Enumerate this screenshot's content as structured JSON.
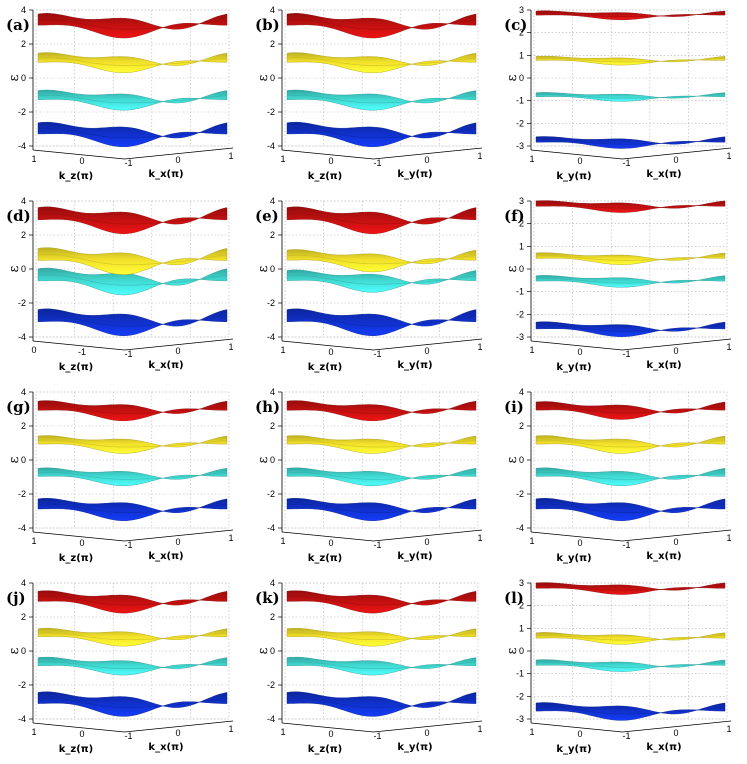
{
  "figure": {
    "ylabel": "ε",
    "ticklabel_x_units": "(π)"
  },
  "chart_data": [
    {
      "panel": "(a)",
      "type": "surface3d",
      "ylabel": "ε",
      "ylim": [
        -4,
        4
      ],
      "yticks": [
        "4",
        "2",
        "0",
        "-2",
        "-4"
      ],
      "xticks": [
        "1",
        "0",
        "-1",
        "0",
        "1"
      ],
      "axis1": "k_z(π)",
      "axis2": "k_x(π)",
      "bands": [
        {
          "center": 3.2,
          "amp": 0.55,
          "color": "#c01010"
        },
        {
          "center": 1.0,
          "amp": 0.45,
          "color": "#f2e02a"
        },
        {
          "center": -1.2,
          "amp": 0.45,
          "color": "#40d8d0"
        },
        {
          "center": -3.2,
          "amp": 0.55,
          "color": "#1030c8"
        }
      ]
    },
    {
      "panel": "(b)",
      "type": "surface3d",
      "ylabel": "ε",
      "ylim": [
        -4,
        4
      ],
      "yticks": [
        "4",
        "2",
        "0",
        "-2",
        "-4"
      ],
      "xticks": [
        "1",
        "0",
        "-1",
        "0",
        "1"
      ],
      "axis1": "k_z(π)",
      "axis2": "k_y(π)",
      "bands": [
        {
          "center": 3.2,
          "amp": 0.55,
          "color": "#c01010"
        },
        {
          "center": 1.0,
          "amp": 0.45,
          "color": "#f2e02a"
        },
        {
          "center": -1.2,
          "amp": 0.45,
          "color": "#40d8d0"
        },
        {
          "center": -3.2,
          "amp": 0.55,
          "color": "#1030c8"
        }
      ]
    },
    {
      "panel": "(c)",
      "type": "surface3d",
      "ylabel": "ε",
      "ylim": [
        -3,
        3
      ],
      "yticks": [
        "3",
        "2",
        "1",
        "0",
        "-1",
        "-2",
        "-3"
      ],
      "xticks": [
        "1",
        "0",
        "-1",
        "0",
        "1"
      ],
      "axis1": "k_y(π)",
      "axis2": "k_x(π)",
      "bands": [
        {
          "center": 2.8,
          "amp": 0.15,
          "color": "#c01010"
        },
        {
          "center": 0.8,
          "amp": 0.15,
          "color": "#f2e02a"
        },
        {
          "center": -0.8,
          "amp": 0.15,
          "color": "#40d8d0"
        },
        {
          "center": -2.8,
          "amp": 0.2,
          "color": "#1030c8"
        }
      ]
    },
    {
      "panel": "(d)",
      "type": "surface3d",
      "ylabel": "ε",
      "ylim": [
        -4,
        4
      ],
      "yticks": [
        "4",
        "2",
        "0",
        "-2",
        "-4"
      ],
      "xticks": [
        "0",
        "-1",
        "-1",
        "0",
        "1"
      ],
      "axis1": "k_z(π)",
      "axis2": "k_x(π)",
      "bands": [
        {
          "center": 3.0,
          "amp": 0.6,
          "color": "#c01010"
        },
        {
          "center": 0.6,
          "amp": 0.6,
          "color": "#f2e02a"
        },
        {
          "center": -0.6,
          "amp": 0.6,
          "color": "#40d8d0"
        },
        {
          "center": -3.0,
          "amp": 0.6,
          "color": "#1030c8"
        }
      ]
    },
    {
      "panel": "(e)",
      "type": "surface3d",
      "ylabel": "ε",
      "ylim": [
        -4,
        4
      ],
      "yticks": [
        "4",
        "2",
        "0",
        "-2",
        "-4"
      ],
      "xticks": [
        "1",
        "0",
        "-1",
        "0",
        "1"
      ],
      "axis1": "k_z(π)",
      "axis2": "k_y(π)",
      "bands": [
        {
          "center": 3.0,
          "amp": 0.6,
          "color": "#c01010"
        },
        {
          "center": 0.6,
          "amp": 0.5,
          "color": "#f2e02a"
        },
        {
          "center": -0.6,
          "amp": 0.5,
          "color": "#40d8d0"
        },
        {
          "center": -3.0,
          "amp": 0.6,
          "color": "#1030c8"
        }
      ]
    },
    {
      "panel": "(f)",
      "type": "surface3d",
      "ylabel": "ε",
      "ylim": [
        -3,
        3
      ],
      "yticks": [
        "3",
        "2",
        "1",
        "0",
        "-1",
        "-2",
        "-3"
      ],
      "xticks": [
        "1",
        "0",
        "-1",
        "0",
        "1"
      ],
      "axis1": "k_y(π)",
      "axis2": "k_x(π)",
      "bands": [
        {
          "center": 2.8,
          "amp": 0.2,
          "color": "#c01010"
        },
        {
          "center": 0.5,
          "amp": 0.2,
          "color": "#f2e02a"
        },
        {
          "center": -0.5,
          "amp": 0.2,
          "color": "#40d8d0"
        },
        {
          "center": -2.6,
          "amp": 0.25,
          "color": "#1030c8"
        }
      ]
    },
    {
      "panel": "(g)",
      "type": "surface3d",
      "ylabel": "ε",
      "ylim": [
        -4,
        4
      ],
      "yticks": [
        "4",
        "2",
        "0",
        "-2",
        "-4"
      ],
      "xticks": [
        "1",
        "0",
        "-1",
        "0",
        "1"
      ],
      "axis1": "k_z(π)",
      "axis2": "k_x(π)",
      "bands": [
        {
          "center": 3.0,
          "amp": 0.45,
          "color": "#c01010"
        },
        {
          "center": 1.0,
          "amp": 0.4,
          "color": "#f2e02a"
        },
        {
          "center": -0.9,
          "amp": 0.4,
          "color": "#40d8d0"
        },
        {
          "center": -2.8,
          "amp": 0.5,
          "color": "#1030c8"
        }
      ]
    },
    {
      "panel": "(h)",
      "type": "surface3d",
      "ylabel": "ε",
      "ylim": [
        -4,
        4
      ],
      "yticks": [
        "4",
        "2",
        "0",
        "-2",
        "-4"
      ],
      "xticks": [
        "1",
        "0",
        "-1",
        "0",
        "1"
      ],
      "axis1": "k_z(π)",
      "axis2": "k_y(π)",
      "bands": [
        {
          "center": 3.0,
          "amp": 0.45,
          "color": "#c01010"
        },
        {
          "center": 1.0,
          "amp": 0.4,
          "color": "#f2e02a"
        },
        {
          "center": -0.9,
          "amp": 0.4,
          "color": "#40d8d0"
        },
        {
          "center": -2.8,
          "amp": 0.5,
          "color": "#1030c8"
        }
      ]
    },
    {
      "panel": "(i)",
      "type": "surface3d",
      "ylabel": "ε",
      "ylim": [
        -4,
        4
      ],
      "yticks": [
        "4",
        "2",
        "0",
        "-2",
        "-4"
      ],
      "xticks": [
        "1",
        "0",
        "-1",
        "0",
        "1"
      ],
      "axis1": "k_y(π)",
      "axis2": "k_x(π)",
      "bands": [
        {
          "center": 3.0,
          "amp": 0.4,
          "color": "#c01010"
        },
        {
          "center": 1.0,
          "amp": 0.4,
          "color": "#f2e02a"
        },
        {
          "center": -0.9,
          "amp": 0.4,
          "color": "#40d8d0"
        },
        {
          "center": -2.8,
          "amp": 0.5,
          "color": "#1030c8"
        }
      ]
    },
    {
      "panel": "(j)",
      "type": "surface3d",
      "ylabel": "ε",
      "ylim": [
        -4,
        4
      ],
      "yticks": [
        "4",
        "2",
        "0",
        "-2",
        "-4"
      ],
      "xticks": [
        "1",
        "0",
        "-1",
        "0",
        "1"
      ],
      "axis1": "k_z(π)",
      "axis2": "k_x(π)",
      "bands": [
        {
          "center": 3.0,
          "amp": 0.5,
          "color": "#c01010"
        },
        {
          "center": 0.9,
          "amp": 0.4,
          "color": "#f2e02a"
        },
        {
          "center": -0.8,
          "amp": 0.4,
          "color": "#40d8d0"
        },
        {
          "center": -3.0,
          "amp": 0.55,
          "color": "#1030c8"
        }
      ]
    },
    {
      "panel": "(k)",
      "type": "surface3d",
      "ylabel": "ε",
      "ylim": [
        -4,
        4
      ],
      "yticks": [
        "4",
        "2",
        "0",
        "-2",
        "-4"
      ],
      "xticks": [
        "1",
        "0",
        "-1",
        "0",
        "1"
      ],
      "axis1": "k_z(π)",
      "axis2": "k_y(π)",
      "bands": [
        {
          "center": 3.0,
          "amp": 0.5,
          "color": "#c01010"
        },
        {
          "center": 0.9,
          "amp": 0.4,
          "color": "#f2e02a"
        },
        {
          "center": -0.8,
          "amp": 0.4,
          "color": "#40d8d0"
        },
        {
          "center": -3.0,
          "amp": 0.55,
          "color": "#1030c8"
        }
      ]
    },
    {
      "panel": "(l)",
      "type": "surface3d",
      "ylabel": "ε",
      "ylim": [
        -3,
        3
      ],
      "yticks": [
        "3",
        "2",
        "1",
        "0",
        "-1",
        "-2",
        "-3"
      ],
      "xticks": [
        "1",
        "0",
        "-1",
        "0",
        "1"
      ],
      "axis1": "k_y(π)",
      "axis2": "k_x(π)",
      "bands": [
        {
          "center": 2.8,
          "amp": 0.2,
          "color": "#c01010"
        },
        {
          "center": 0.6,
          "amp": 0.2,
          "color": "#f2e02a"
        },
        {
          "center": -0.6,
          "amp": 0.2,
          "color": "#40d8d0"
        },
        {
          "center": -2.6,
          "amp": 0.3,
          "color": "#1030c8"
        }
      ]
    }
  ]
}
